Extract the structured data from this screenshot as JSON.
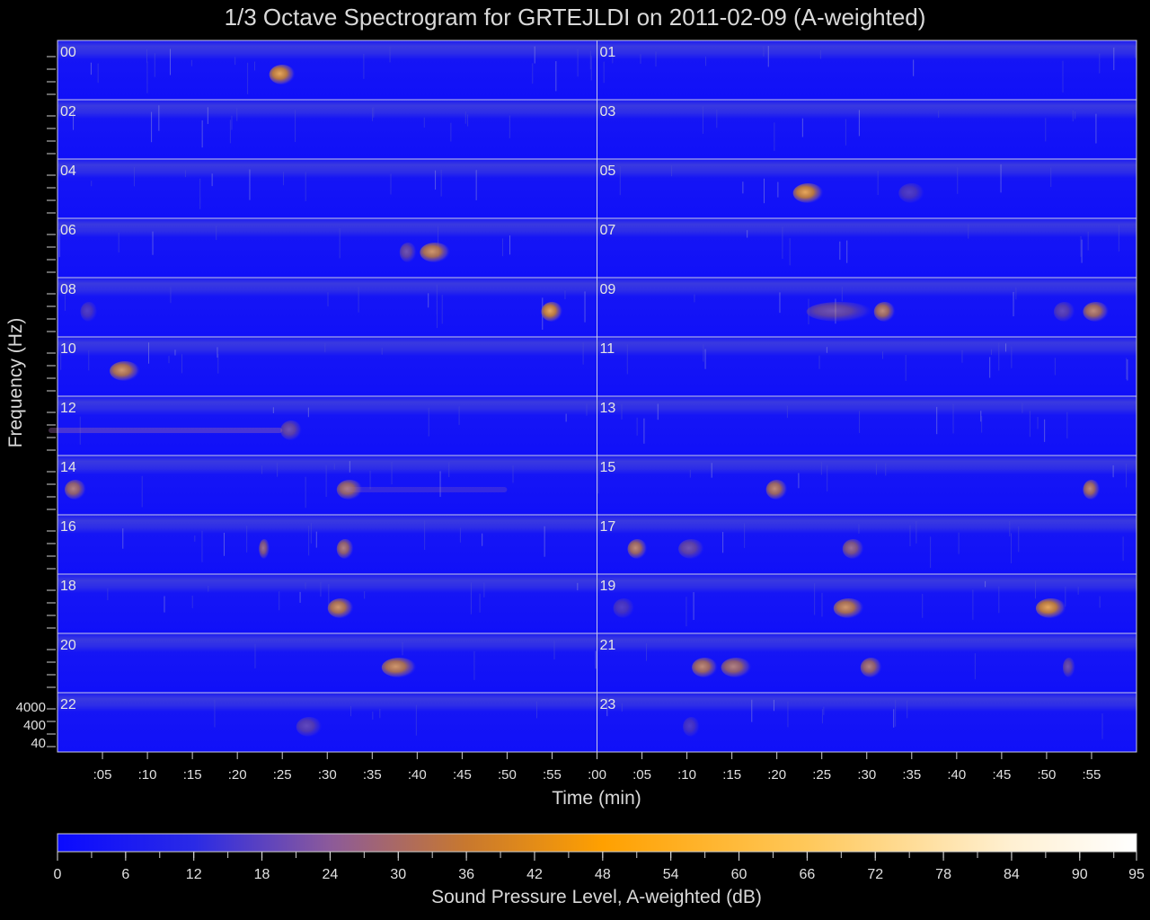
{
  "chart_data": {
    "type": "heatmap",
    "title": "1/3 Octave Spectrogram for GRTEJLDI on 2011-02-09 (A-weighted)",
    "xlabel": "Time (min)",
    "ylabel": "Frequency (Hz)",
    "colorbar_label": "Sound Pressure Level, A-weighted (dB)",
    "colorbar_range": [
      0,
      95
    ],
    "colorbar_ticks": [
      "0",
      "6",
      "12",
      "18",
      "24",
      "30",
      "36",
      "42",
      "48",
      "54",
      "60",
      "66",
      "72",
      "78",
      "84",
      "90",
      "95"
    ],
    "colorbar_stops": [
      {
        "db": 0,
        "color": "#0a0aff"
      },
      {
        "db": 12,
        "color": "#2a2ae6"
      },
      {
        "db": 24,
        "color": "#8c5a9a"
      },
      {
        "db": 36,
        "color": "#c8782e"
      },
      {
        "db": 48,
        "color": "#ffa000"
      },
      {
        "db": 66,
        "color": "#ffc85a"
      },
      {
        "db": 84,
        "color": "#fff0d2"
      },
      {
        "db": 95,
        "color": "#ffffff"
      }
    ],
    "background_color": "#1414f5",
    "x_tick_labels_left": [
      ":05",
      ":10",
      ":15",
      ":20",
      ":25",
      ":30",
      ":35",
      ":40",
      ":45",
      ":50",
      ":55",
      ":00"
    ],
    "x_tick_labels_right": [
      ":05",
      ":10",
      ":15",
      ":20",
      ":25",
      ":30",
      ":35",
      ":40",
      ":45",
      ":50",
      ":55"
    ],
    "y_tick_labels": [
      "4000",
      "400",
      "40"
    ],
    "hours": [
      "00",
      "01",
      "02",
      "03",
      "04",
      "05",
      "06",
      "07",
      "08",
      "09",
      "10",
      "11",
      "12",
      "13",
      "14",
      "15",
      "16",
      "17",
      "18",
      "19",
      "20",
      "21",
      "22",
      "23"
    ],
    "events": [
      {
        "hour": 0,
        "minute": 25,
        "duration_min": 2.5,
        "db": 45
      },
      {
        "hour": 5,
        "minute": 23.5,
        "duration_min": 3,
        "db": 45
      },
      {
        "hour": 5,
        "minute": 35,
        "duration_min": 2.5,
        "db": 26
      },
      {
        "hour": 6,
        "minute": 39,
        "duration_min": 1.5,
        "db": 30
      },
      {
        "hour": 6,
        "minute": 42,
        "duration_min": 3,
        "db": 42
      },
      {
        "hour": 8,
        "minute": 3.5,
        "duration_min": 1.5,
        "db": 26
      },
      {
        "hour": 8,
        "minute": 55,
        "duration_min": 2,
        "db": 45
      },
      {
        "hour": 9,
        "minute": 27,
        "duration_min": 7,
        "db": 30
      },
      {
        "hour": 9,
        "minute": 32,
        "duration_min": 2,
        "db": 40
      },
      {
        "hour": 9,
        "minute": 52,
        "duration_min": 2,
        "db": 28
      },
      {
        "hour": 9,
        "minute": 55.5,
        "duration_min": 2.5,
        "db": 40
      },
      {
        "hour": 10,
        "minute": 7.5,
        "duration_min": 3,
        "db": 42
      },
      {
        "hour": 12,
        "minute": 12,
        "duration_min": 26,
        "db": 30
      },
      {
        "hour": 12,
        "minute": 26,
        "duration_min": 2,
        "db": 30
      },
      {
        "hour": 14,
        "minute": 2,
        "duration_min": 2,
        "db": 38
      },
      {
        "hour": 14,
        "minute": 32.5,
        "duration_min": 2.5,
        "db": 38
      },
      {
        "hour": 14,
        "minute": 41,
        "duration_min": 18,
        "db": 22
      },
      {
        "hour": 15,
        "minute": 20,
        "duration_min": 2,
        "db": 40
      },
      {
        "hour": 15,
        "minute": 55,
        "duration_min": 1.5,
        "db": 40
      },
      {
        "hour": 16,
        "minute": 23,
        "duration_min": 0.8,
        "db": 35
      },
      {
        "hour": 16,
        "minute": 32,
        "duration_min": 1.5,
        "db": 38
      },
      {
        "hour": 17,
        "minute": 4.5,
        "duration_min": 1.8,
        "db": 40
      },
      {
        "hour": 17,
        "minute": 10.5,
        "duration_min": 2.5,
        "db": 30
      },
      {
        "hour": 17,
        "minute": 28.5,
        "duration_min": 2,
        "db": 35
      },
      {
        "hour": 18,
        "minute": 31.5,
        "duration_min": 2.5,
        "db": 42
      },
      {
        "hour": 19,
        "minute": 3,
        "duration_min": 2,
        "db": 26
      },
      {
        "hour": 19,
        "minute": 28,
        "duration_min": 3,
        "db": 42
      },
      {
        "hour": 19,
        "minute": 50.5,
        "duration_min": 3,
        "db": 45
      },
      {
        "hour": 20,
        "minute": 38,
        "duration_min": 3.5,
        "db": 42
      },
      {
        "hour": 21,
        "minute": 12,
        "duration_min": 2.5,
        "db": 40
      },
      {
        "hour": 21,
        "minute": 15.5,
        "duration_min": 3,
        "db": 38
      },
      {
        "hour": 21,
        "minute": 30.5,
        "duration_min": 2,
        "db": 38
      },
      {
        "hour": 21,
        "minute": 52.5,
        "duration_min": 1,
        "db": 30
      },
      {
        "hour": 22,
        "minute": 28,
        "duration_min": 2.5,
        "db": 28
      },
      {
        "hour": 23,
        "minute": 10.5,
        "duration_min": 1.5,
        "db": 24
      }
    ]
  }
}
